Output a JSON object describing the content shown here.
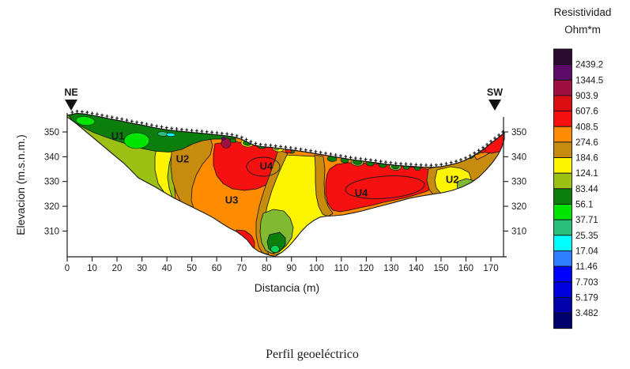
{
  "figure": {
    "caption": "Perfil geoeléctrico"
  },
  "markers": {
    "left": "NE",
    "right": "SW"
  },
  "axes": {
    "x": {
      "label": "Distancia (m)",
      "ticks": [
        0,
        10,
        20,
        30,
        40,
        50,
        60,
        70,
        80,
        90,
        100,
        110,
        120,
        130,
        140,
        150,
        160,
        170
      ]
    },
    "y_left": {
      "label": "Elevacion (m.s.n.m.)",
      "ticks": [
        350,
        340,
        330,
        320,
        310
      ]
    },
    "y_right": {
      "ticks": [
        350,
        340,
        330,
        320,
        310
      ]
    }
  },
  "legend": {
    "title_line1": "Resistividad",
    "title_line2": "Ohm*m",
    "values": [
      "2439.2",
      "1344.5",
      "903.9",
      "607.6",
      "408.5",
      "274.6",
      "184.6",
      "124.1",
      "83.44",
      "56.1",
      "37.71",
      "25.35",
      "17.04",
      "11.46",
      "7.703",
      "5.179",
      "3.482"
    ],
    "colors": [
      "#2D0A31",
      "#5C0B69",
      "#9D1040",
      "#DB0D10",
      "#F61010",
      "#FF8C00",
      "#C78B0D",
      "#FCF400",
      "#9CC013",
      "#0B7E0B",
      "#00E400",
      "#29BF7B",
      "#00FFFF",
      "#2E7FFF",
      "#0000FF",
      "#0000DC",
      "#0000AC",
      "#00006E"
    ]
  },
  "chart_data": {
    "type": "heatmap",
    "subtype": "geoelectric-resistivity-cross-section",
    "title": "Perfil geoeléctrico",
    "xlabel": "Distancia (m)",
    "ylabel": "Elevacion (m.s.n.m.)",
    "x_ticks": [
      0,
      10,
      20,
      30,
      40,
      50,
      60,
      70,
      80,
      90,
      100,
      110,
      120,
      130,
      140,
      150,
      160,
      170
    ],
    "y_ticks": [
      350,
      340,
      330,
      320,
      310
    ],
    "x_range": [
      0,
      175.4
    ],
    "y_range": [
      299.8,
      357.5
    ],
    "grid": false,
    "legend_position": "right",
    "profile_endpoints": {
      "left": "NE",
      "right": "SW"
    },
    "colorbar": {
      "title": "Resistividad Ohm*m",
      "boundary_values": [
        2439.2,
        1344.5,
        903.9,
        607.6,
        408.5,
        274.6,
        184.6,
        124.1,
        83.44,
        56.1,
        37.71,
        25.35,
        17.04,
        11.46,
        7.703,
        5.179,
        3.482
      ],
      "colors_top_to_bottom": [
        "#2D0A31",
        "#5C0B69",
        "#9D1040",
        "#DB0D10",
        "#F61010",
        "#FF8C00",
        "#C78B0D",
        "#FCF400",
        "#9CC013",
        "#0B7E0B",
        "#00E400",
        "#29BF7B",
        "#00FFFF",
        "#2E7FFF",
        "#0000FF",
        "#0000DC",
        "#0000AC",
        "#00006E"
      ]
    },
    "unit_labels": [
      {
        "name": "U1",
        "distance_m": 20.3,
        "elevation_m": 348.4
      },
      {
        "name": "U2",
        "distance_m": 46.3,
        "elevation_m": 339.2
      },
      {
        "name": "U4",
        "distance_m": 79.9,
        "elevation_m": 336.3
      },
      {
        "name": "U3",
        "distance_m": 66.0,
        "elevation_m": 322.6
      },
      {
        "name": "U4",
        "distance_m": 118.0,
        "elevation_m": 325.4
      },
      {
        "name": "U2",
        "distance_m": 154.5,
        "elevation_m": 330.9
      }
    ],
    "topography": [
      [
        0,
        356.7
      ],
      [
        3.8,
        357.5
      ],
      [
        7.3,
        357.2
      ],
      [
        11.7,
        356.4
      ],
      [
        16.5,
        355.4
      ],
      [
        21.3,
        354.5
      ],
      [
        26,
        353.5
      ],
      [
        30.8,
        352.6
      ],
      [
        35.5,
        351.6
      ],
      [
        40.3,
        350.8
      ],
      [
        45,
        350.3
      ],
      [
        49.8,
        349.8
      ],
      [
        54.6,
        349.4
      ],
      [
        59.3,
        348.9
      ],
      [
        64.1,
        348.4
      ],
      [
        67.2,
        347.9
      ],
      [
        69.8,
        347.1
      ],
      [
        72.3,
        345.9
      ],
      [
        74.9,
        344.7
      ],
      [
        77.7,
        344.1
      ],
      [
        81.5,
        343.8
      ],
      [
        85.6,
        343.3
      ],
      [
        90.4,
        342.7
      ],
      [
        95.2,
        342
      ],
      [
        99.9,
        341.2
      ],
      [
        104.7,
        340.4
      ],
      [
        109.4,
        339.6
      ],
      [
        114.2,
        338.8
      ],
      [
        118.9,
        338.2
      ],
      [
        123.7,
        337.6
      ],
      [
        128.5,
        336.9
      ],
      [
        133.2,
        336.4
      ],
      [
        138,
        336.1
      ],
      [
        142.7,
        335.8
      ],
      [
        146.8,
        335.7
      ],
      [
        150,
        336
      ],
      [
        153.2,
        336.6
      ],
      [
        156.4,
        337.4
      ],
      [
        159.5,
        338.5
      ],
      [
        162.4,
        340
      ],
      [
        164.9,
        341.6
      ],
      [
        167.5,
        343.3
      ],
      [
        170,
        345.4
      ],
      [
        172.2,
        347.1
      ],
      [
        174.1,
        348.6
      ],
      [
        175.4,
        349.7
      ]
    ],
    "lower_boundary": [
      [
        0,
        356.1
      ],
      [
        3.5,
        353.5
      ],
      [
        7.3,
        350.3
      ],
      [
        11.1,
        347.1
      ],
      [
        14.9,
        343.9
      ],
      [
        18.7,
        340.7
      ],
      [
        22.5,
        337.6
      ],
      [
        25.7,
        334.4
      ],
      [
        28.5,
        331.5
      ],
      [
        32,
        329.6
      ],
      [
        35.5,
        327.7
      ],
      [
        39.3,
        325.4
      ],
      [
        43.1,
        323.2
      ],
      [
        46.9,
        321.3
      ],
      [
        50.7,
        319.4
      ],
      [
        54.6,
        317.5
      ],
      [
        58.4,
        315.5
      ],
      [
        62.2,
        313
      ],
      [
        65.3,
        311.1
      ],
      [
        67.9,
        309.8
      ],
      [
        70.1,
        308.2
      ],
      [
        72.3,
        306.3
      ],
      [
        74.5,
        303.4
      ],
      [
        76.8,
        301.8
      ],
      [
        79,
        300.9
      ],
      [
        81.2,
        300.2
      ],
      [
        83.4,
        299.8
      ],
      [
        86.3,
        301.5
      ],
      [
        88.8,
        303.7
      ],
      [
        91.3,
        306.6
      ],
      [
        93.9,
        309.8
      ],
      [
        96.4,
        312.4
      ],
      [
        99,
        314.3
      ],
      [
        101.5,
        315.6
      ],
      [
        104,
        316
      ],
      [
        107.2,
        316.2
      ],
      [
        110.7,
        316.5
      ],
      [
        114.2,
        317.2
      ],
      [
        118.3,
        318.1
      ],
      [
        123.1,
        319.4
      ],
      [
        128.1,
        320.7
      ],
      [
        132.9,
        322
      ],
      [
        137.6,
        323.3
      ],
      [
        142.4,
        324.2
      ],
      [
        146.8,
        324.9
      ],
      [
        150.7,
        325.5
      ],
      [
        154.5,
        326.4
      ],
      [
        158.3,
        327.7
      ],
      [
        162.1,
        329.6
      ],
      [
        165.2,
        331.8
      ],
      [
        168.1,
        334.7
      ],
      [
        170.6,
        337.6
      ],
      [
        172.8,
        340.7
      ],
      [
        174.4,
        343.9
      ],
      [
        175.4,
        347.1
      ]
    ]
  }
}
